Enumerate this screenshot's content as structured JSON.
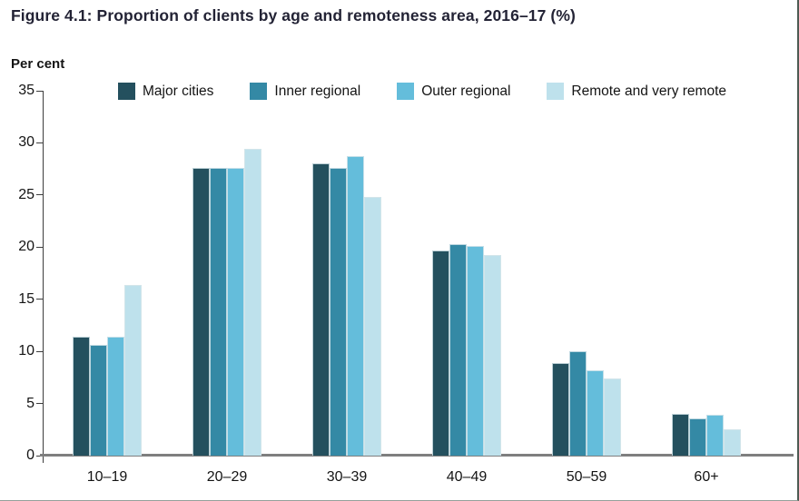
{
  "figure": {
    "title": "Figure 4.1: Proportion of clients by age and remoteness area, 2016–17 (%)"
  },
  "colors": {
    "title_text": "#232335",
    "axis_line": "#3d3d3d",
    "baseline": "#7f7f7f",
    "series_major_cities": "#24505E",
    "series_inner_regional": "#3489A5",
    "series_outer_regional": "#64BDDB",
    "series_remote": "#BEE1EC"
  },
  "chart_data": {
    "type": "bar",
    "title": "Figure 4.1: Proportion of clients by age and remoteness area, 2016–17 (%)",
    "xlabel": "",
    "ylabel": "Per cent",
    "ylim": [
      0,
      35
    ],
    "yticks": [
      0,
      5,
      10,
      15,
      20,
      25,
      30,
      35
    ],
    "grid": false,
    "legend_position": "top",
    "categories": [
      "10–19",
      "20–29",
      "30–39",
      "40–49",
      "50–59",
      "60+"
    ],
    "series": [
      {
        "name": "Major cities",
        "color": "#24505E",
        "values": [
          11.4,
          27.6,
          28.0,
          19.7,
          8.9,
          4.0
        ]
      },
      {
        "name": "Inner regional",
        "color": "#3489A5",
        "values": [
          10.6,
          27.6,
          27.6,
          20.3,
          10.0,
          3.6
        ]
      },
      {
        "name": "Outer regional",
        "color": "#64BDDB",
        "values": [
          11.4,
          27.6,
          28.7,
          20.1,
          8.2,
          3.9
        ]
      },
      {
        "name": "Remote and very remote",
        "color": "#BEE1EC",
        "values": [
          16.4,
          29.4,
          24.8,
          19.2,
          7.4,
          2.5
        ]
      }
    ]
  }
}
